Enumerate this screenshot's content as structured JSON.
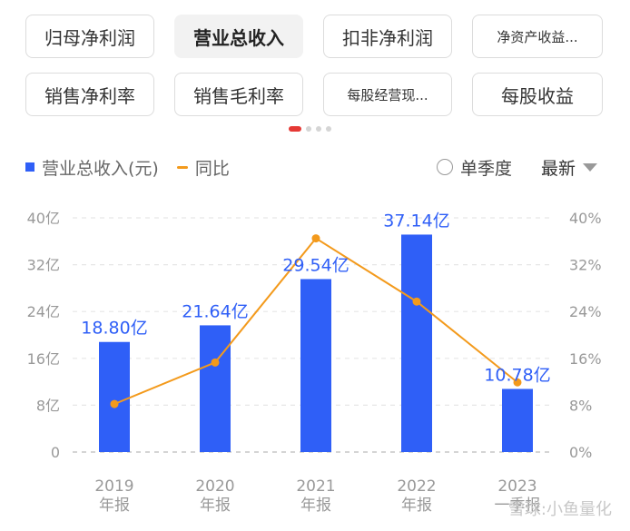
{
  "tabs": [
    {
      "label": "归母净利润",
      "active": false
    },
    {
      "label": "营业总收入",
      "active": true
    },
    {
      "label": "扣非净利润",
      "active": false
    },
    {
      "label": "净资产收益...",
      "active": false
    },
    {
      "label": "销售净利率",
      "active": false
    },
    {
      "label": "销售毛利率",
      "active": false
    },
    {
      "label": "每股经营现...",
      "active": false
    },
    {
      "label": "每股收益",
      "active": false
    }
  ],
  "legend": {
    "bar_label": "营业总收入(元)",
    "line_label": "同比"
  },
  "controls": {
    "quarter_label": "单季度",
    "latest_label": "最新"
  },
  "watermark": "雪球:小鱼量化",
  "colors": {
    "bar": "#2f5ff7",
    "line": "#f39a1c",
    "label": "#2f5ff7"
  },
  "chart_data": {
    "type": "bar",
    "categories": [
      [
        "2019",
        "年报"
      ],
      [
        "2020",
        "年报"
      ],
      [
        "2021",
        "年报"
      ],
      [
        "2022",
        "年报"
      ],
      [
        "2023",
        "一季报"
      ]
    ],
    "series": [
      {
        "name": "营业总收入(元)",
        "type": "bar",
        "axis": "left",
        "values": [
          18.8,
          21.64,
          29.54,
          37.14,
          10.78
        ],
        "labels": [
          "18.80亿",
          "21.64亿",
          "29.54亿",
          "37.14亿",
          "10.78亿"
        ]
      },
      {
        "name": "同比",
        "type": "line",
        "axis": "right",
        "values": [
          8.2,
          15.3,
          36.5,
          25.7,
          11.9
        ]
      }
    ],
    "left_axis": {
      "ticks": [
        "0",
        "8亿",
        "16亿",
        "24亿",
        "32亿",
        "40亿"
      ],
      "range": [
        0,
        40
      ]
    },
    "right_axis": {
      "ticks": [
        "0%",
        "8%",
        "16%",
        "24%",
        "32%",
        "40%"
      ],
      "range": [
        0,
        40
      ]
    },
    "grid": true
  }
}
